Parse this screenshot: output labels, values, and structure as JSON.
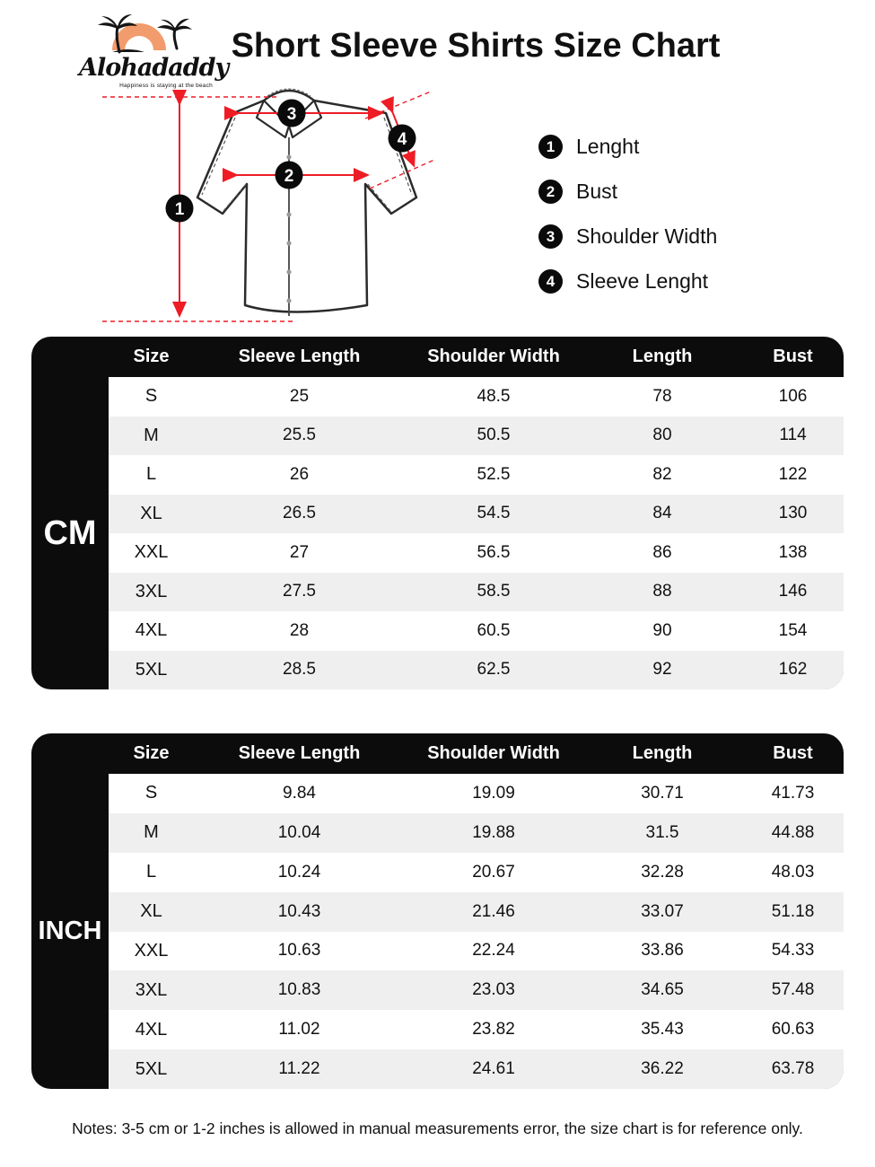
{
  "header": {
    "brand": "Alohadaddy",
    "tagline": "Happiness is staying at the beach",
    "title": "Short Sleeve Shirts Size Chart"
  },
  "diagram": {
    "badges": [
      "1",
      "2",
      "3",
      "4"
    ]
  },
  "legend": {
    "items": [
      {
        "num": "1",
        "label": "Lenght"
      },
      {
        "num": "2",
        "label": "Bust"
      },
      {
        "num": "3",
        "label": "Shoulder Width"
      },
      {
        "num": "4",
        "label": "Sleeve Lenght"
      }
    ]
  },
  "tables": [
    {
      "unit": "CM",
      "columns": [
        "Size",
        "Sleeve Length",
        "Shoulder Width",
        "Length",
        "Bust"
      ],
      "rows": [
        [
          "S",
          "25",
          "48.5",
          "78",
          "106"
        ],
        [
          "M",
          "25.5",
          "50.5",
          "80",
          "114"
        ],
        [
          "L",
          "26",
          "52.5",
          "82",
          "122"
        ],
        [
          "XL",
          "26.5",
          "54.5",
          "84",
          "130"
        ],
        [
          "XXL",
          "27",
          "56.5",
          "86",
          "138"
        ],
        [
          "3XL",
          "27.5",
          "58.5",
          "88",
          "146"
        ],
        [
          "4XL",
          "28",
          "60.5",
          "90",
          "154"
        ],
        [
          "5XL",
          "28.5",
          "62.5",
          "92",
          "162"
        ]
      ]
    },
    {
      "unit": "INCH",
      "columns": [
        "Size",
        "Sleeve Length",
        "Shoulder Width",
        "Length",
        "Bust"
      ],
      "rows": [
        [
          "S",
          "9.84",
          "19.09",
          "30.71",
          "41.73"
        ],
        [
          "M",
          "10.04",
          "19.88",
          "31.5",
          "44.88"
        ],
        [
          "L",
          "10.24",
          "20.67",
          "32.28",
          "48.03"
        ],
        [
          "XL",
          "10.43",
          "21.46",
          "33.07",
          "51.18"
        ],
        [
          "XXL",
          "10.63",
          "22.24",
          "33.86",
          "54.33"
        ],
        [
          "3XL",
          "10.83",
          "23.03",
          "34.65",
          "57.48"
        ],
        [
          "4XL",
          "11.02",
          "23.82",
          "35.43",
          "60.63"
        ],
        [
          "5XL",
          "11.22",
          "24.61",
          "36.22",
          "63.78"
        ]
      ]
    }
  ],
  "notes": "Notes: 3-5 cm or 1-2 inches is allowed in manual measurements error, the size chart is for reference only.",
  "colors": {
    "accent_red": "#ee1c25",
    "sun_orange": "#f29b6c",
    "table_black": "#0c0c0c",
    "row_alt": "#efefef"
  }
}
